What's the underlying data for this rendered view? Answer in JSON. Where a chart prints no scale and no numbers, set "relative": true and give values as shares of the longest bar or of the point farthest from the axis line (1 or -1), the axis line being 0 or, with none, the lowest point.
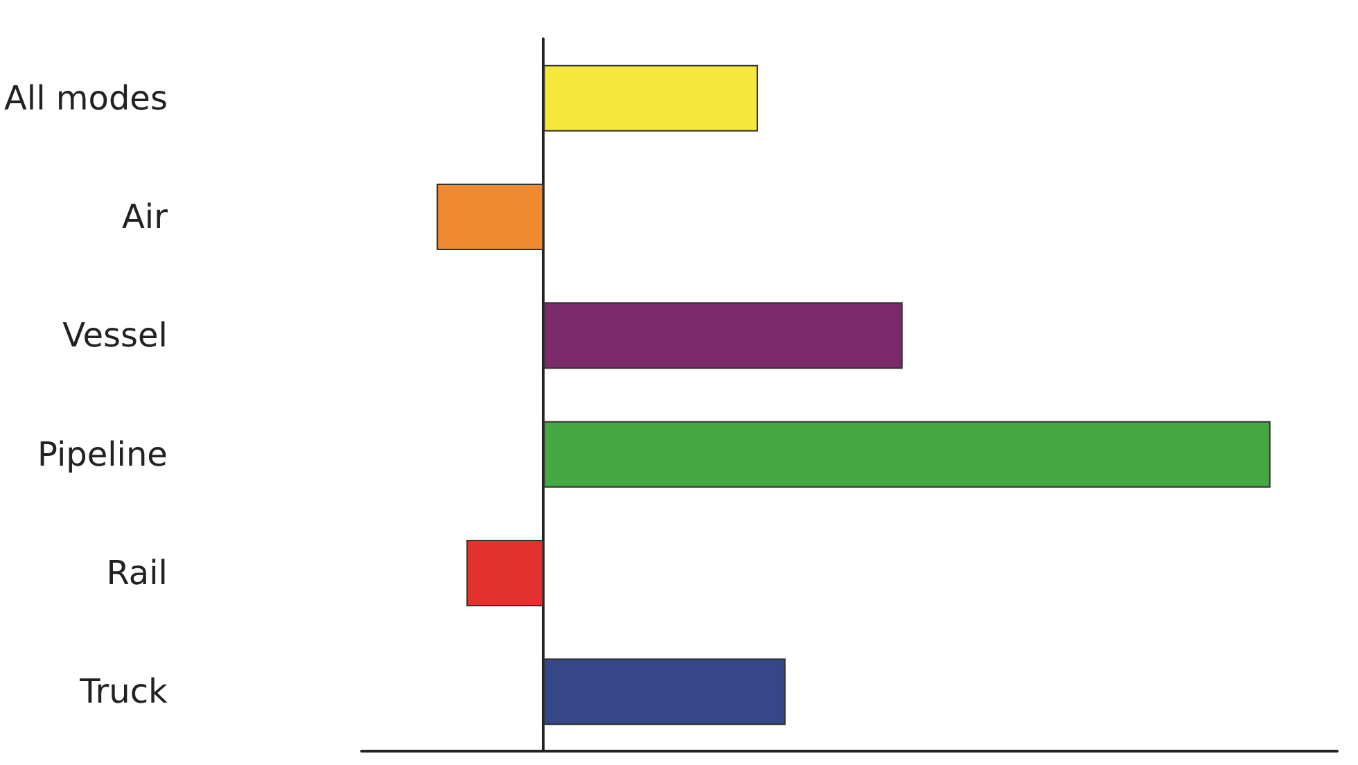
{
  "chart_data": {
    "type": "bar",
    "orientation": "horizontal",
    "relative": true,
    "categories": [
      "All modes",
      "Air",
      "Vessel",
      "Pipeline",
      "Rail",
      "Truck"
    ],
    "values": [
      0.295,
      -0.147,
      0.494,
      1,
      -0.106,
      0.333
    ],
    "colors": [
      "#f5e83a",
      "#f08a30",
      "#7b2a6b",
      "#45a843",
      "#e3322d",
      "#364788"
    ]
  }
}
